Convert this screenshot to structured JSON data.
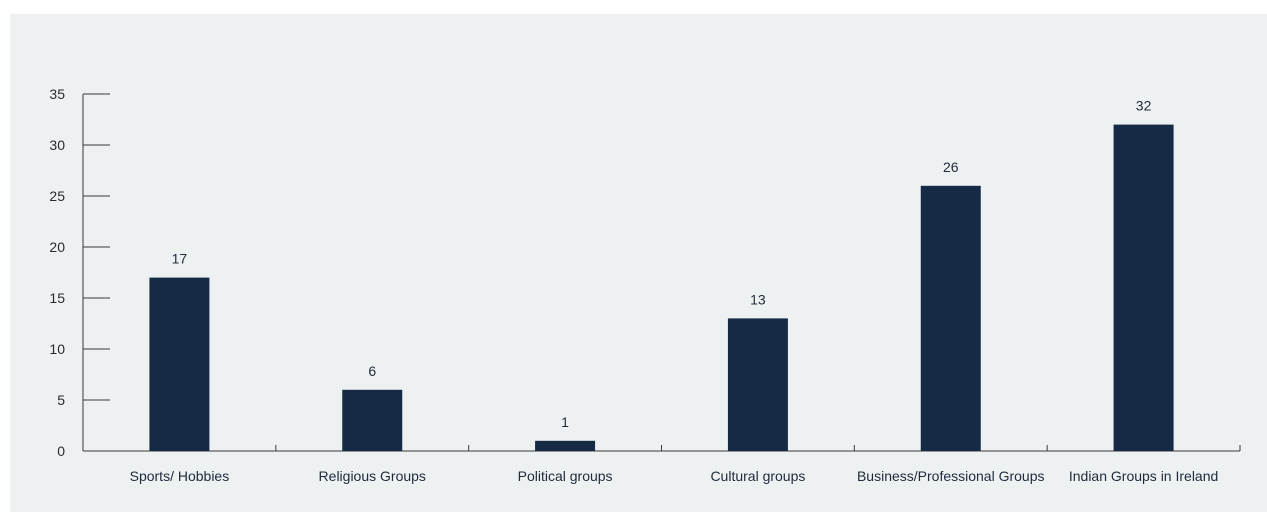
{
  "chart_data": {
    "type": "bar",
    "categories": [
      "Sports/ Hobbies",
      "Religious Groups",
      "Political groups",
      "Cultural groups",
      "Business/Professional Groups",
      "Indian Groups in Ireland"
    ],
    "values": [
      17,
      6,
      1,
      13,
      26,
      32
    ],
    "data_labels": [
      "17",
      "6",
      "1",
      "13",
      "26",
      "32"
    ],
    "yticks": [
      "0",
      "5",
      "10",
      "15",
      "20",
      "25",
      "30",
      "35"
    ],
    "title": "",
    "xlabel": "",
    "ylabel": "",
    "ylim": [
      0,
      35
    ],
    "grid": false,
    "legend": "none",
    "colors": {
      "bar": "#172a45",
      "background": "#edf1f2",
      "axis": "#3a3a3a"
    }
  }
}
